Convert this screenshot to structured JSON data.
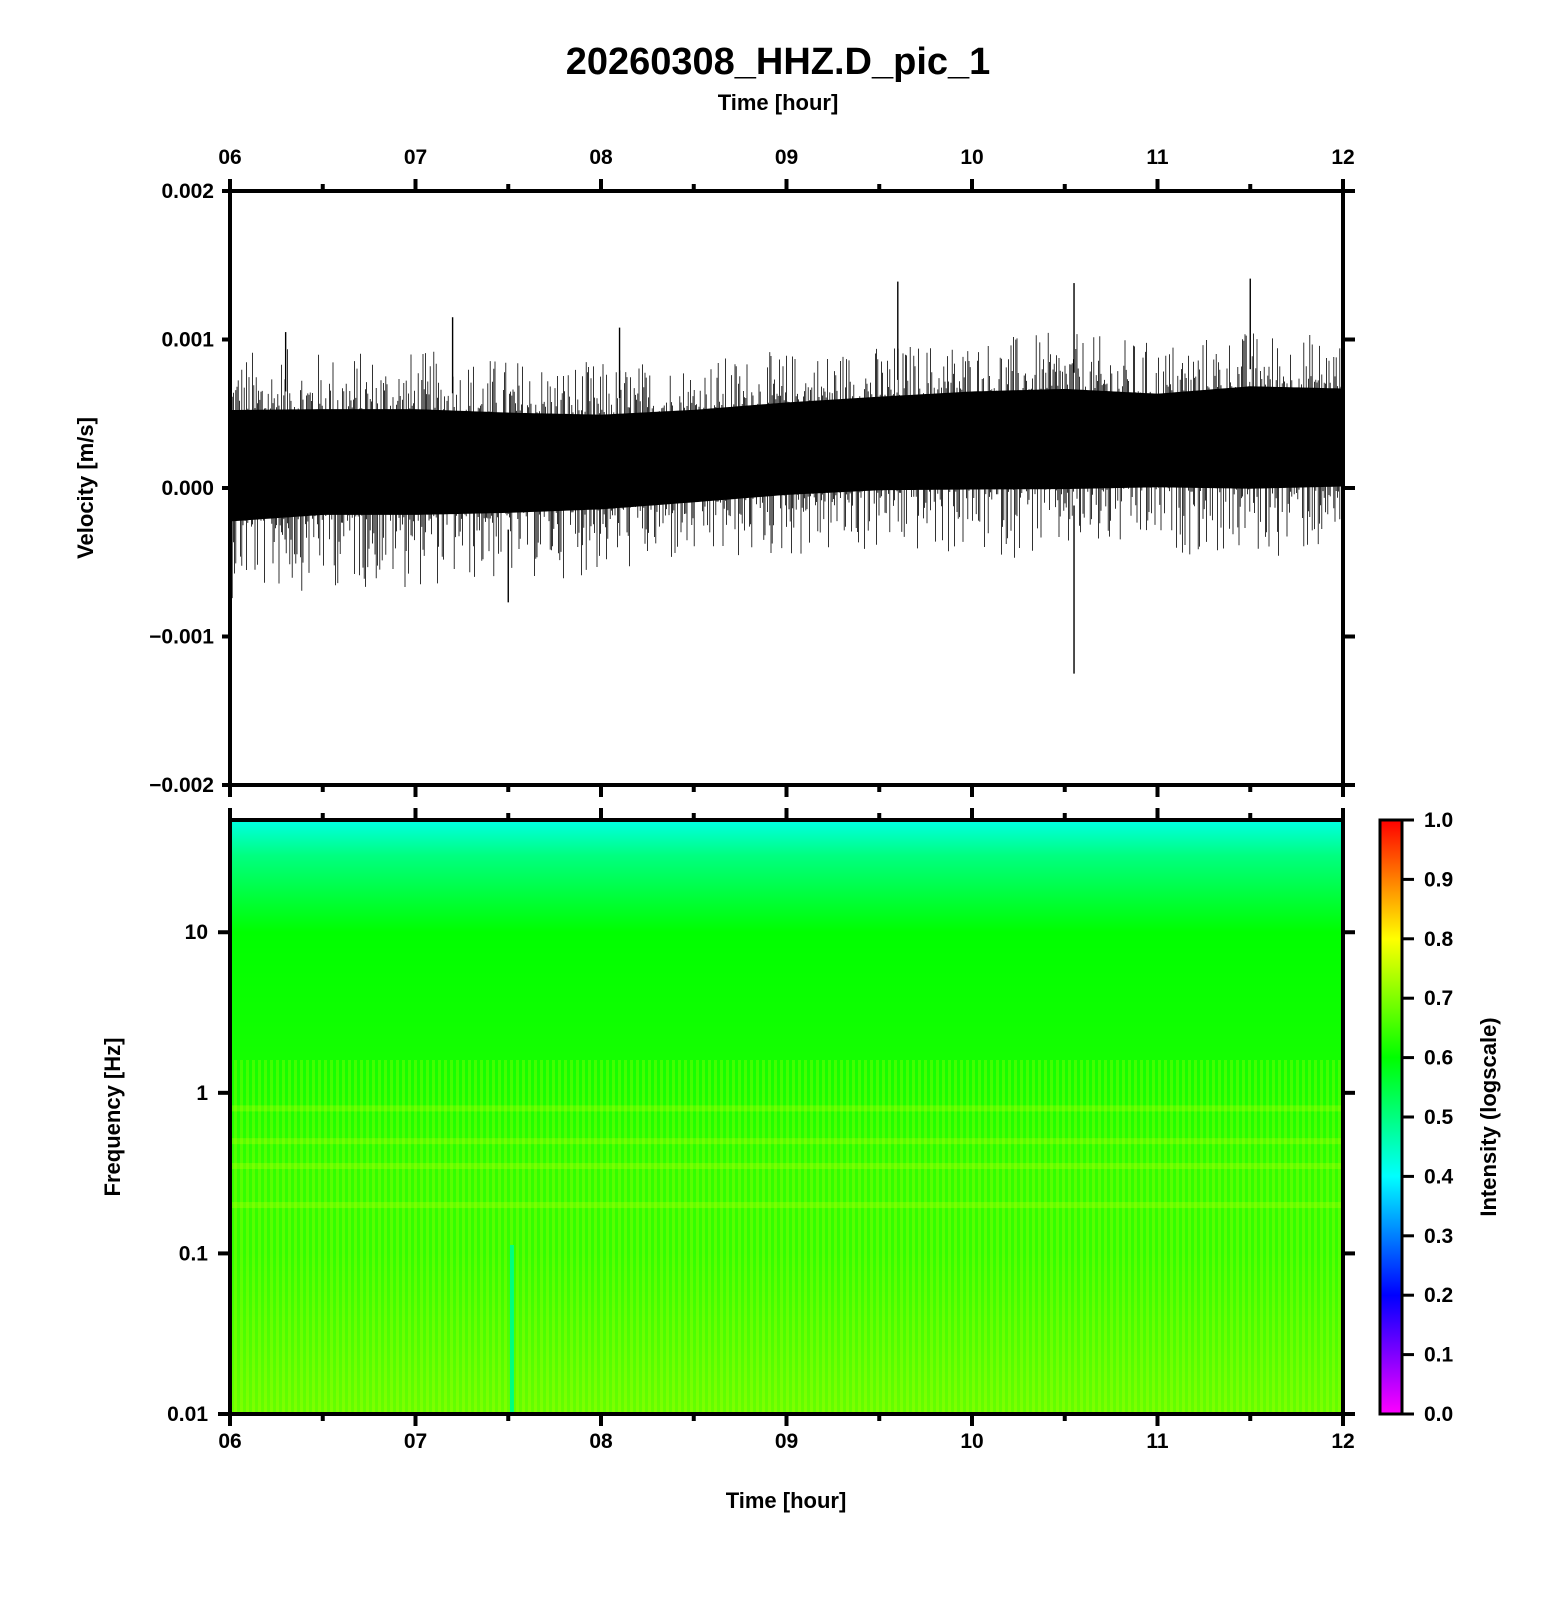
{
  "chart_data": [
    {
      "type": "line",
      "panel": "waveform",
      "title": "20260308_HHZ.D_pic_1",
      "top_xlabel": "Time [hour]",
      "xlabel": "",
      "ylabel": "Velocity [m/s]",
      "x_ticks": [
        "06",
        "07",
        "08",
        "09",
        "10",
        "11",
        "12"
      ],
      "xlim": [
        6,
        12
      ],
      "y_ticks": [
        "0.002",
        "0.001",
        "0.000",
        "−0.001",
        "−0.002"
      ],
      "ylim": [
        -0.002,
        0.002
      ],
      "line_color": "#000000",
      "series": [
        {
          "x": [
            6.0,
            6.5,
            7.0,
            7.5,
            8.0,
            8.5,
            9.0,
            9.5,
            10.0,
            10.5,
            11.0,
            11.5,
            12.0
          ],
          "envelope_upper": [
            0.00065,
            0.00065,
            0.00065,
            0.00062,
            0.0006,
            0.00063,
            0.00068,
            0.00072,
            0.00076,
            0.00078,
            0.00074,
            0.0008,
            0.00078
          ],
          "envelope_lower": [
            -0.00035,
            -0.0003,
            -0.0003,
            -0.00028,
            -0.00025,
            -0.0002,
            -0.00015,
            -0.00012,
            -0.00012,
            -0.00012,
            -0.0001,
            -0.00012,
            -0.0001
          ],
          "peaks": [
            {
              "x": 6.3,
              "y": 0.00105
            },
            {
              "x": 7.2,
              "y": 0.00115
            },
            {
              "x": 7.5,
              "y": -0.00077
            },
            {
              "x": 8.1,
              "y": 0.00108
            },
            {
              "x": 9.6,
              "y": 0.00139
            },
            {
              "x": 10.55,
              "y": -0.00125
            },
            {
              "x": 10.55,
              "y": 0.00138
            },
            {
              "x": 11.5,
              "y": 0.00141
            }
          ]
        }
      ]
    },
    {
      "type": "heatmap",
      "panel": "spectrogram",
      "xlabel": "Time [hour]",
      "ylabel": "Frequency [Hz]",
      "x_ticks": [
        "06",
        "07",
        "08",
        "09",
        "10",
        "11",
        "12"
      ],
      "xlim": [
        6,
        12
      ],
      "y_ticks": [
        "10",
        "1",
        "0.1",
        "0.01"
      ],
      "ylim": [
        0.01,
        50
      ],
      "y_scale": "log",
      "colorbar_label": "Intensity (logscale)",
      "colorbar_ticks": [
        "1.0",
        "0.9",
        "0.8",
        "0.7",
        "0.6",
        "0.5",
        "0.4",
        "0.3",
        "0.2",
        "0.1",
        "0.0"
      ],
      "colorbar_range": [
        0,
        1
      ],
      "colormap": [
        "#ff00ff",
        "#0000ff",
        "#00ffff",
        "#00ff00",
        "#ffff00",
        "#ff0000"
      ],
      "intensity_profile": [
        {
          "freq": 50,
          "intensity": 0.42
        },
        {
          "freq": 30,
          "intensity": 0.5
        },
        {
          "freq": 10,
          "intensity": 0.6
        },
        {
          "freq": 1,
          "intensity": 0.62
        },
        {
          "freq": 0.3,
          "intensity": 0.64
        },
        {
          "freq": 0.1,
          "intensity": 0.64
        },
        {
          "freq": 0.01,
          "intensity": 0.68
        }
      ],
      "anomaly": {
        "x": 7.52,
        "intensity": 0.5
      }
    }
  ]
}
